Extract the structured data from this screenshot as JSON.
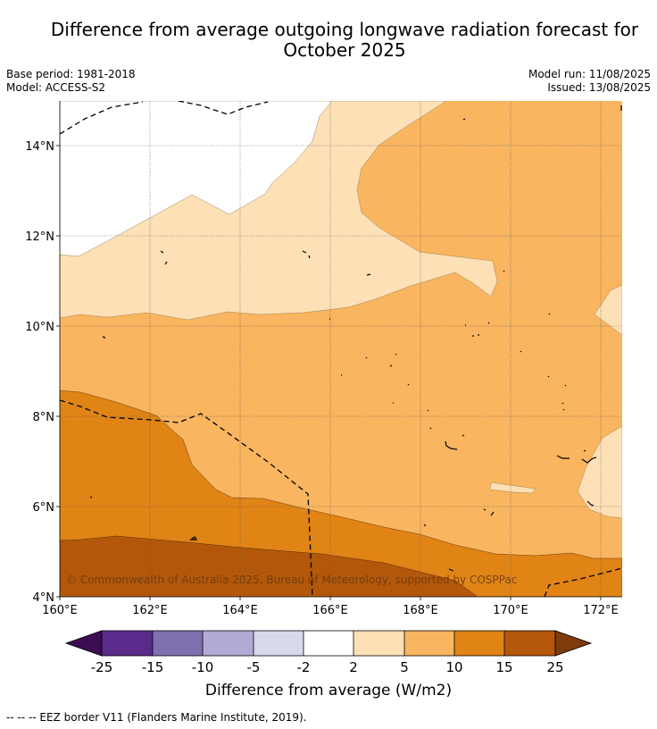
{
  "title": {
    "line1": "Difference from average outgoing longwave radiation forecast for",
    "line2": "October 2025"
  },
  "meta": {
    "base_period": "Base period: 1981-2018",
    "model": "Model: ACCESS-S2",
    "model_run": "Model run: 11/08/2025",
    "issued": "Issued: 13/08/2025"
  },
  "map": {
    "lat_labels": [
      "14°N",
      "12°N",
      "10°N",
      "8°N",
      "6°N",
      "4°N"
    ],
    "lon_labels": [
      "160°E",
      "162°E",
      "164°E",
      "166°E",
      "168°E",
      "170°E",
      "172°E"
    ],
    "copyright": "© Commonwealth of Australia 2025, Bureau of Meteorology, supported by COSPPac"
  },
  "colorbar": {
    "colors": {
      "under": "#3d0c52",
      "b1": "#5a2b8a",
      "b2": "#8070b0",
      "b3": "#b2a9d4",
      "b4": "#d9d9ec",
      "b5": "#ffffff",
      "b6": "#fde0b5",
      "b7": "#f9b560",
      "b8": "#e08416",
      "b9": "#b3580a",
      "over": "#7f3b0a"
    },
    "tick_labels": [
      "-25",
      "-15",
      "-10",
      "-5",
      "-2",
      "2",
      "5",
      "10",
      "15",
      "25"
    ],
    "label": "Difference from average (W/m2)"
  },
  "footnote": "--  --  -- EEZ border V11 (Flanders Marine Institute, 2019)."
}
